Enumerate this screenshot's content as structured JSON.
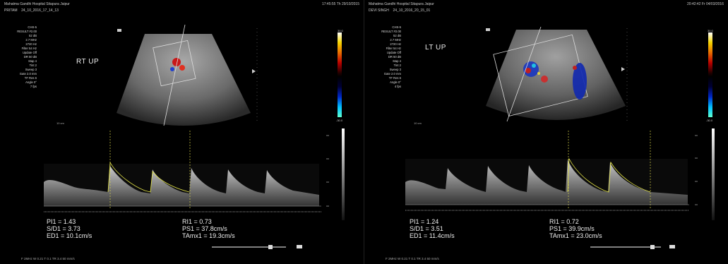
{
  "left": {
    "header_title": "Mahatma Gandhi Hospital Sitapura Jaipur",
    "header_time": "17:45:55 Th 29/10/2015",
    "patient": "PRITAM",
    "study_id": "24_10_2016_17_14_13",
    "params": [
      "CHS-5",
      "RESULT #2.00",
      "52 dB",
      "2.7 MHz",
      "2720 Hz",
      "Filter 54 Hz",
      "Update Off",
      "DR 50 dB",
      "Map 4",
      "Tint 2",
      "Sweep 3",
      "Gate 2.0 mm",
      "TF Res 6",
      "Angle 0°",
      "7 fps"
    ],
    "view_label": "RT UP",
    "stats_left": [
      "PI1 = 1.43",
      "S/D1 = 3.73",
      "ED1 = 10.1cm/s"
    ],
    "stats_right": [
      "RI1 = 0.73",
      "PS1 = 37.8cm/s",
      "TAmx1 = 19.3cm/s"
    ],
    "scale_top": "30.0",
    "scale_bottom": "-30.0",
    "footer": "F 2MHz   W 0.21        T 0.1   TR 3.4                                                      50 mm/s"
  },
  "right": {
    "header_title": "Mahatma Gandhi Hospital Sitapura Jaipur",
    "header_time": "20:42:42 Fr 04/03/2016",
    "patient": "DEVI SINGH",
    "study_id": "24_10_2016_20_15_01",
    "params": [
      "CHS-5",
      "RESULT #2.00",
      "52 dB",
      "2.7 MHz",
      "2720 Hz",
      "Filter 54 Hz",
      "Update Off",
      "DR 50 dB",
      "Map 4",
      "Tint 2",
      "Sweep 3",
      "Gate 2.0 mm",
      "TF Res 6",
      "Angle 0°",
      "4 fps"
    ],
    "view_label": "LT UP",
    "stats_left": [
      "PI1 = 1.24",
      "S/D1 = 3.51",
      "ED1 = 11.4cm/s"
    ],
    "stats_right": [
      "RI1 = 0.72",
      "PS1 = 39.9cm/s",
      "TAmx1 = 23.0cm/s"
    ],
    "scale_top": "30.0",
    "scale_bottom": "-30.0",
    "footer": "F 2MHz   W 0.21        T 0.1   TR 3.4                                                      50 mm/s"
  },
  "colors": {
    "doppler_trace": "#e8e84a",
    "cursor_line": "#d6d24a",
    "tissue": "#9a9a9a"
  }
}
